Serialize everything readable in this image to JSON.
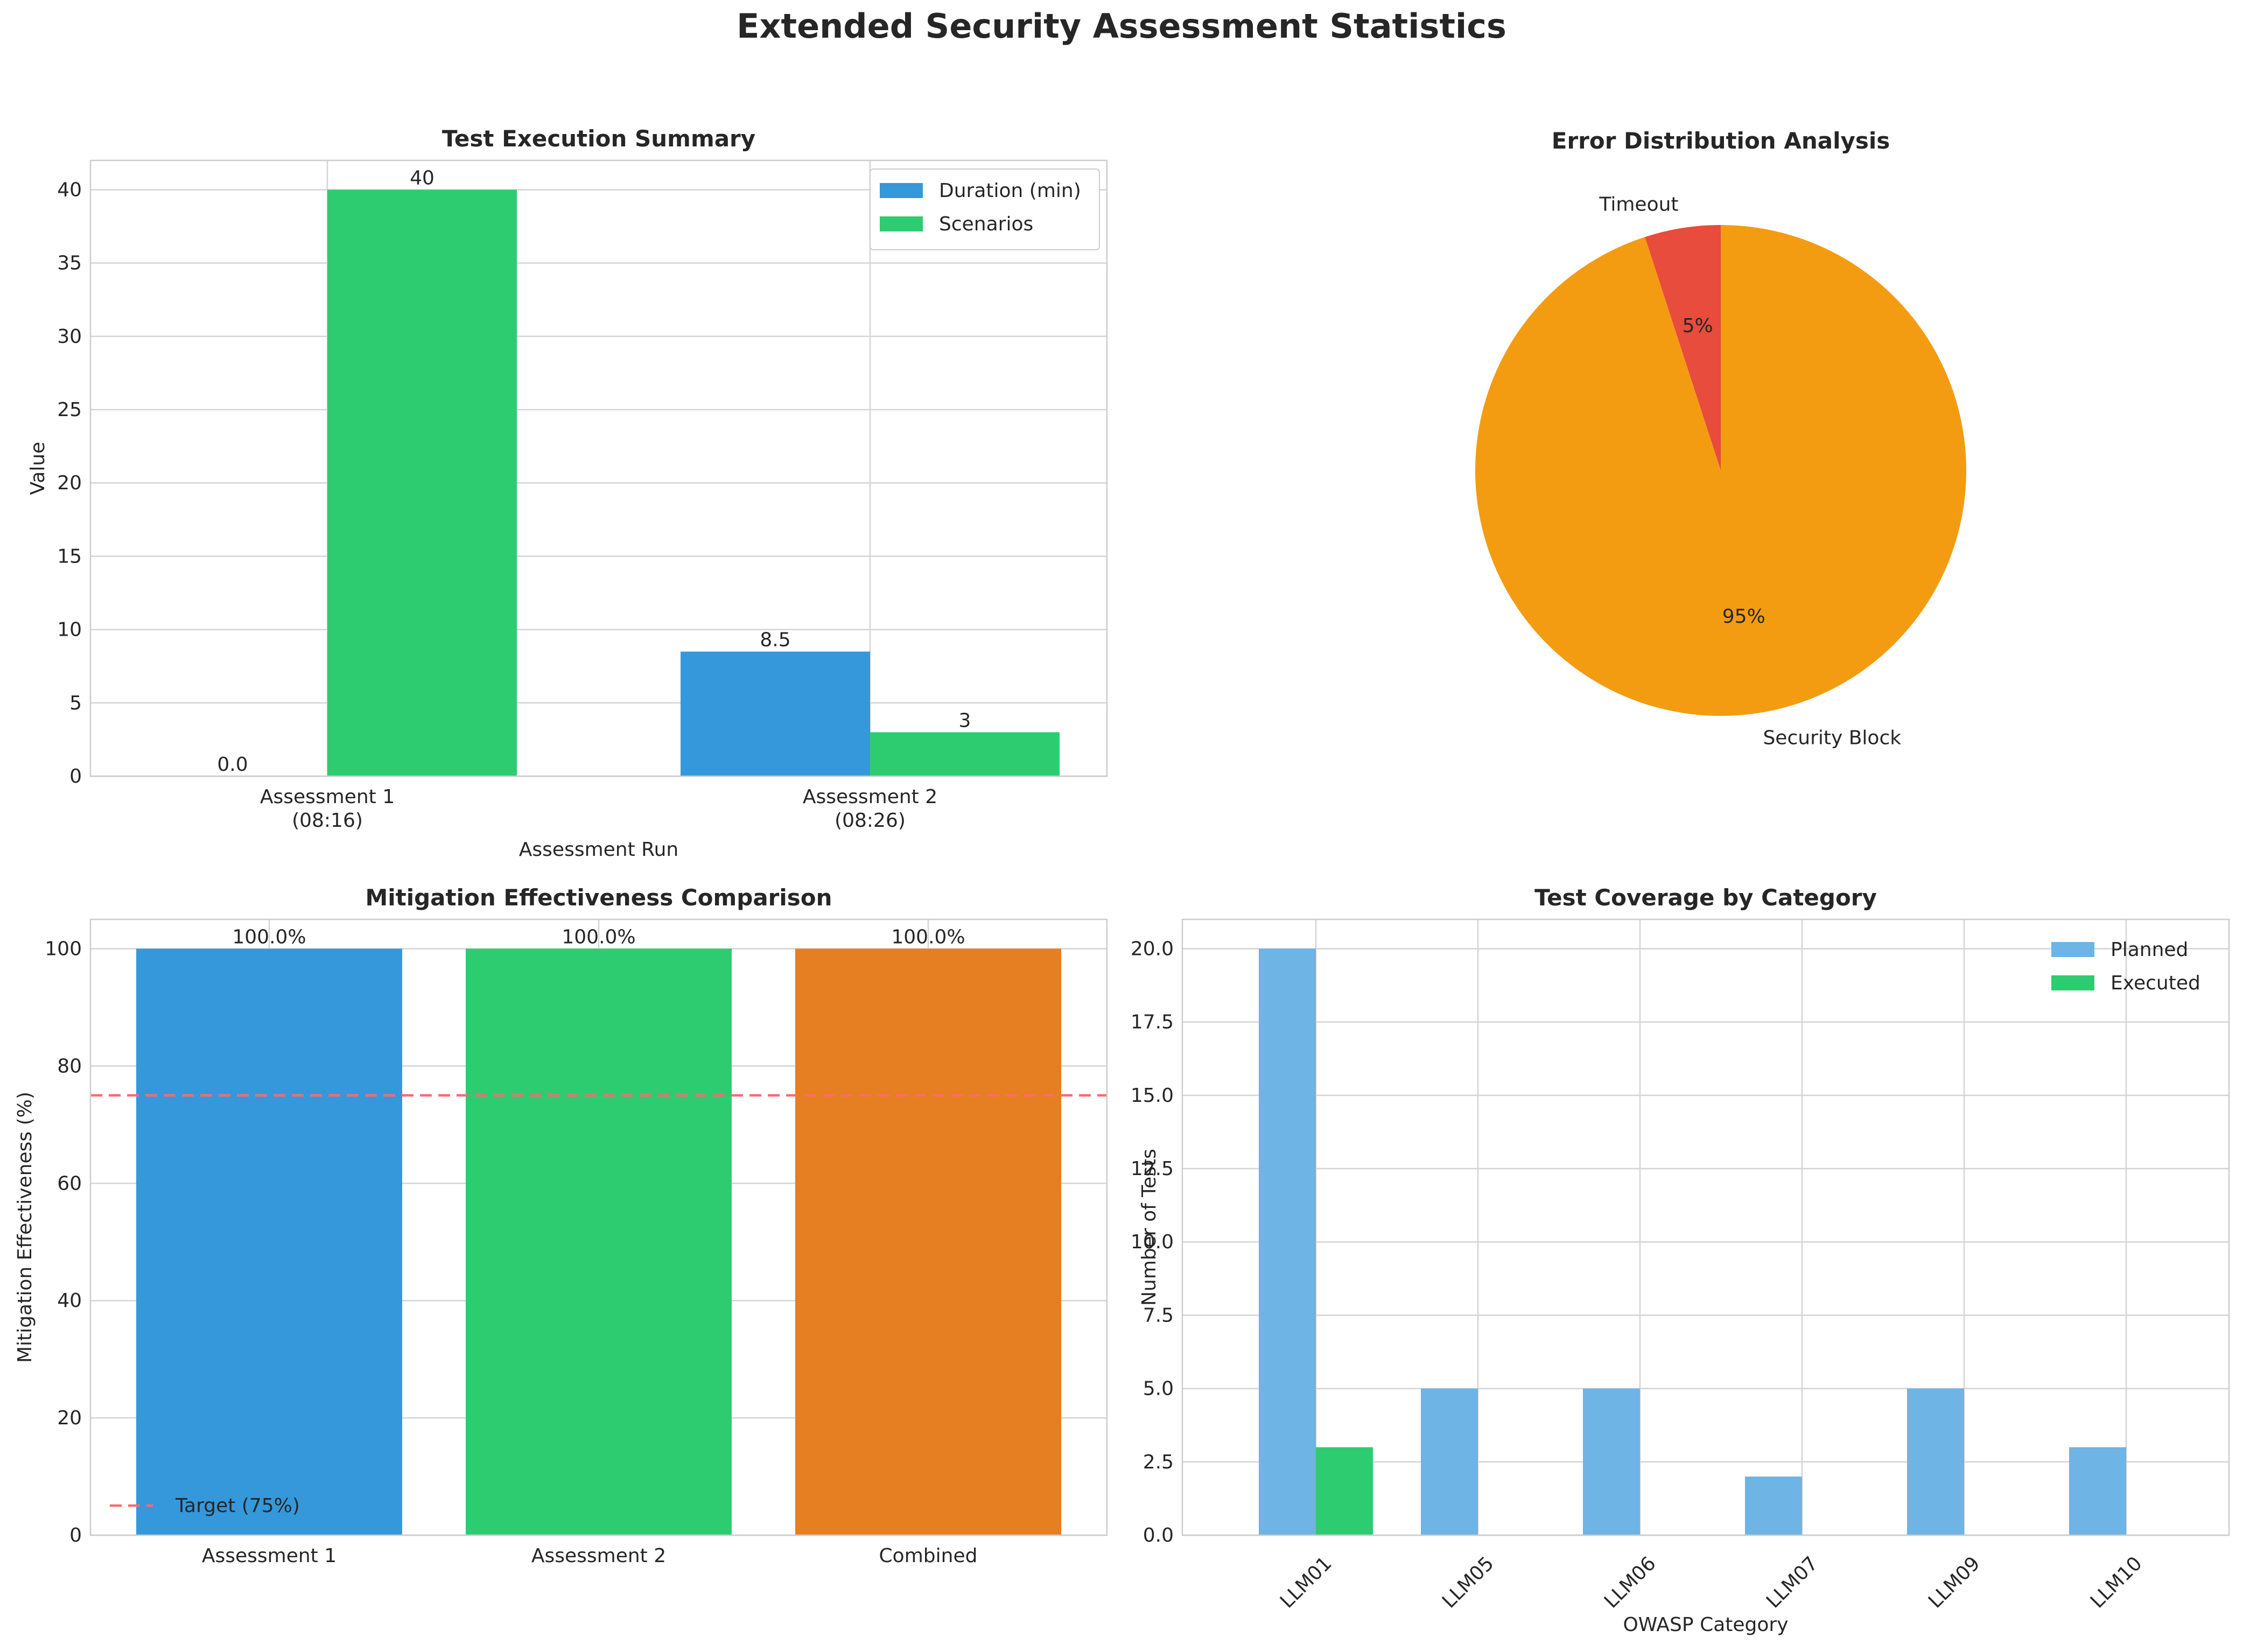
{
  "figure": {
    "title": "Extended Security Assessment Statistics"
  },
  "chart_data": [
    {
      "type": "bar",
      "title": "Test Execution Summary",
      "xlabel": "Assessment Run",
      "ylabel": "Value",
      "categories": [
        "Assessment 1\n(08:16)",
        "Assessment 2\n(08:26)"
      ],
      "series": [
        {
          "name": "Duration (min)",
          "values": [
            0.0,
            8.5
          ],
          "labels": [
            "0.0",
            "8.5"
          ],
          "color": "#3498db"
        },
        {
          "name": "Scenarios",
          "values": [
            40,
            3
          ],
          "labels": [
            "40",
            "3"
          ],
          "color": "#2ecc71"
        }
      ],
      "ylim": [
        0,
        42
      ],
      "yticks": [
        0,
        5,
        10,
        15,
        20,
        25,
        30,
        35,
        40
      ],
      "grid": true,
      "legend": "top-right"
    },
    {
      "type": "pie",
      "title": "Error Distribution Analysis",
      "slices": [
        {
          "label": "Timeout",
          "value": 5,
          "pct_label": "5%",
          "color": "#e74c3c"
        },
        {
          "label": "Security Block",
          "value": 95,
          "pct_label": "95%",
          "color": "#f39c12"
        }
      ]
    },
    {
      "type": "bar",
      "title": "Mitigation Effectiveness Comparison",
      "ylabel": "Mitigation Effectiveness (%)",
      "categories": [
        "Assessment 1",
        "Assessment 2",
        "Combined"
      ],
      "values": [
        100.0,
        100.0,
        100.0
      ],
      "labels": [
        "100.0%",
        "100.0%",
        "100.0%"
      ],
      "colors": [
        "#3498db",
        "#2ecc71",
        "#e67e22"
      ],
      "ylim": [
        0,
        105
      ],
      "yticks": [
        0,
        20,
        40,
        60,
        80,
        100
      ],
      "reference_line": {
        "name": "Target (75%)",
        "value": 75,
        "color": "#ff6b6b"
      },
      "grid": true,
      "legend": "bottom-left"
    },
    {
      "type": "bar",
      "title": "Test Coverage by Category",
      "xlabel": "OWASP Category",
      "ylabel": "Number of Tests",
      "categories": [
        "LLM01",
        "LLM05",
        "LLM06",
        "LLM07",
        "LLM09",
        "LLM10"
      ],
      "series": [
        {
          "name": "Planned",
          "values": [
            20,
            5,
            5,
            2,
            5,
            3
          ],
          "color": "#6eb4e4"
        },
        {
          "name": "Executed",
          "values": [
            3,
            0,
            0,
            0,
            0,
            0
          ],
          "color": "#2ecc71"
        }
      ],
      "ylim": [
        0,
        21
      ],
      "yticks": [
        "0.0",
        "2.5",
        "5.0",
        "7.5",
        "10.0",
        "12.5",
        "15.0",
        "17.5",
        "20.0"
      ],
      "grid": true,
      "legend": "top-right"
    }
  ]
}
